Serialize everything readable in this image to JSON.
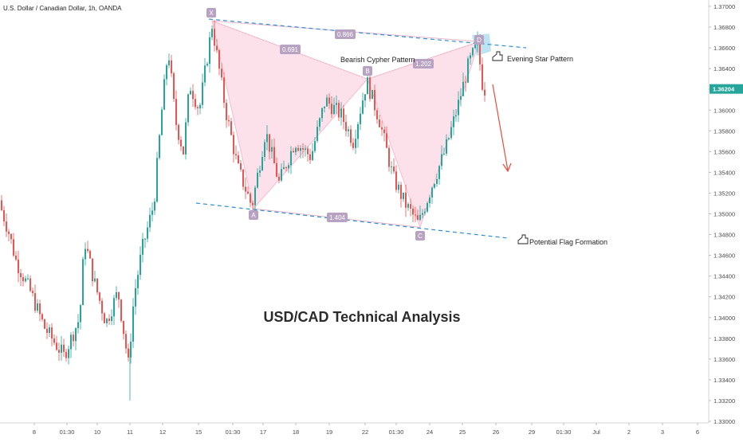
{
  "chart_data": {
    "type": "candlestick",
    "symbol_title": "U.S. Dollar / Canadian Dollar, 1h, OANDA",
    "main_title": "USD/CAD Technical Analysis",
    "last_price": "1.36204",
    "y_axis": {
      "ticks": [
        "1.37000",
        "1.36800",
        "1.36600",
        "1.36400",
        "1.36200",
        "1.36000",
        "1.35800",
        "1.35600",
        "1.35400",
        "1.35200",
        "1.35000",
        "1.34800",
        "1.34600",
        "1.34400",
        "1.34200",
        "1.34000",
        "1.33800",
        "1.33600",
        "1.33400",
        "1.33200",
        "1.33000"
      ],
      "ylim": [
        1.3298,
        1.3708
      ]
    },
    "x_axis": {
      "ticks": [
        "8",
        "01:30",
        "10",
        "11",
        "12",
        "15",
        "01:30",
        "17",
        "18",
        "19",
        "22",
        "01:30",
        "24",
        "25",
        "26",
        "29",
        "01:30",
        "Jul",
        "2",
        "3",
        "6"
      ]
    },
    "pattern": {
      "name": "Bearish Cypher Pattern",
      "points": [
        {
          "label": "X",
          "price": 1.3686
        },
        {
          "label": "A",
          "price": 1.3505
        },
        {
          "label": "B",
          "price": 1.363
        },
        {
          "label": "C",
          "price": 1.3487
        },
        {
          "label": "D",
          "price": 1.3666
        }
      ],
      "ratios": [
        "0.691",
        "1.202",
        "0.866",
        "1.404"
      ]
    },
    "annotations": [
      "Evening Star Pattern",
      "Potential Flag Formation"
    ],
    "colors": {
      "up": "#26a69a",
      "down": "#ef5350",
      "pattern_fill": "#f8bbd0",
      "pattern_label_bg": "#b8a2c2",
      "trendline": "#2f8fd6",
      "projection_arrow": "#e74c3c",
      "price_tag": "#26a69a"
    }
  }
}
